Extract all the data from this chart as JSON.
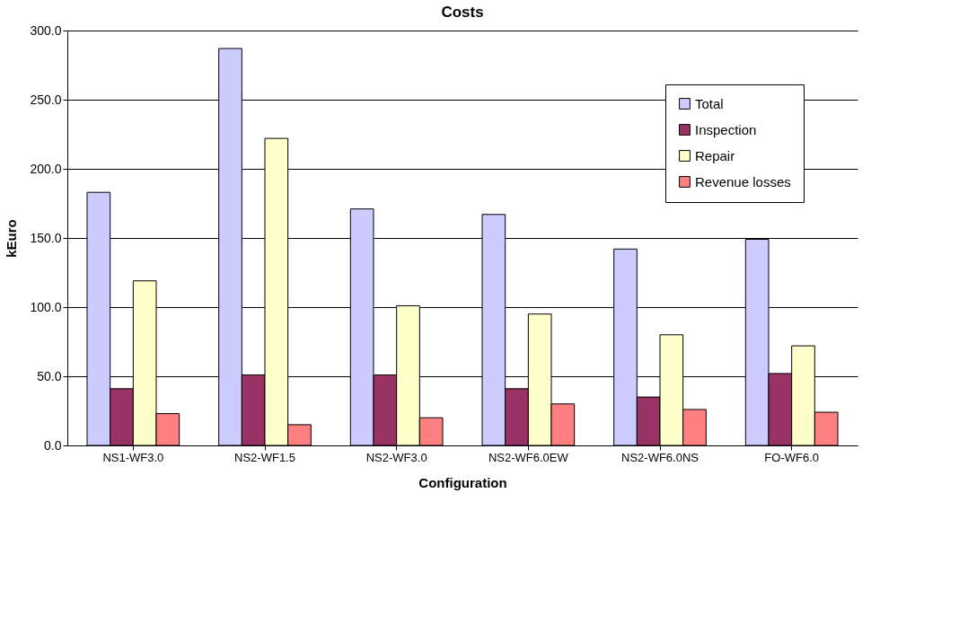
{
  "chart_data": {
    "type": "bar",
    "title": "Costs",
    "xlabel": "Configuration",
    "ylabel": "kEuro",
    "categories": [
      "NS1-WF3.0",
      "NS2-WF1.5",
      "NS2-WF3.0",
      "NS2-WF6.0EW",
      "NS2-WF6.0NS",
      "FO-WF6.0"
    ],
    "series": [
      {
        "name": "Total",
        "color": "#ccccff",
        "values": [
          183,
          287,
          171,
          167,
          142,
          149
        ]
      },
      {
        "name": "Inspection",
        "color": "#993366",
        "values": [
          41,
          51,
          51,
          41,
          35,
          52
        ]
      },
      {
        "name": "Repair",
        "color": "#ffffcc",
        "values": [
          119,
          222,
          101,
          95,
          80,
          72
        ]
      },
      {
        "name": "Revenue losses",
        "color": "#ff8080",
        "values": [
          23,
          15,
          20,
          30,
          26,
          24
        ]
      }
    ],
    "ylim": [
      0,
      300
    ],
    "yticks": [
      {
        "value": 0,
        "label": "0.0"
      },
      {
        "value": 50,
        "label": "50.0"
      },
      {
        "value": 100,
        "label": "100.0"
      },
      {
        "value": 150,
        "label": "150.0"
      },
      {
        "value": 200,
        "label": "200.0"
      },
      {
        "value": 250,
        "label": "250.0"
      },
      {
        "value": 300,
        "label": "300.0"
      }
    ],
    "grid": "y",
    "legend": "top right"
  }
}
